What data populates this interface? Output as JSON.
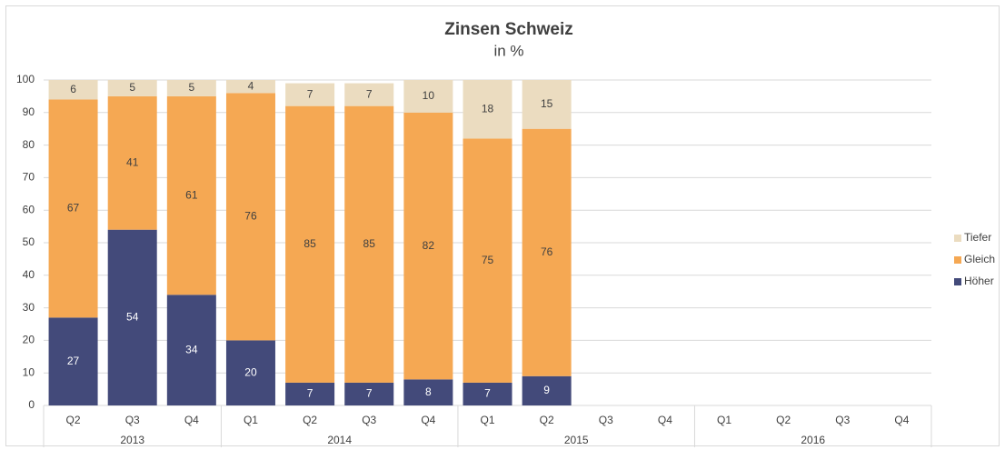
{
  "chart_data": {
    "type": "stacked_bar",
    "title": "Zinsen Schweiz",
    "subtitle": "in %",
    "categories": [
      "Q2",
      "Q3",
      "Q4",
      "Q1",
      "Q2",
      "Q3",
      "Q4",
      "Q1",
      "Q2",
      "Q3",
      "Q4",
      "Q1",
      "Q2",
      "Q3",
      "Q4"
    ],
    "category_groups": [
      {
        "name": "2013",
        "size": 3
      },
      {
        "name": "2014",
        "size": 4
      },
      {
        "name": "2015",
        "size": 4
      },
      {
        "name": "2016",
        "size": 4
      }
    ],
    "series": [
      {
        "name": "Höher",
        "color": "#434a7a",
        "values": [
          27,
          54,
          34,
          20,
          7,
          7,
          8,
          7,
          9,
          null,
          null,
          null,
          null,
          null,
          null
        ]
      },
      {
        "name": "Gleich",
        "color": "#f5a853",
        "values": [
          67,
          41,
          61,
          76,
          85,
          85,
          82,
          75,
          76,
          null,
          null,
          null,
          null,
          null,
          null
        ]
      },
      {
        "name": "Tiefer",
        "color": "#ebdcc0",
        "values": [
          6,
          5,
          5,
          4,
          7,
          7,
          10,
          18,
          15,
          null,
          null,
          null,
          null,
          null,
          null
        ]
      }
    ],
    "ylim": [
      0,
      100
    ],
    "yticks": [
      0,
      10,
      20,
      30,
      40,
      50,
      60,
      70,
      80,
      90,
      100
    ],
    "grid": true,
    "legend": "right"
  }
}
